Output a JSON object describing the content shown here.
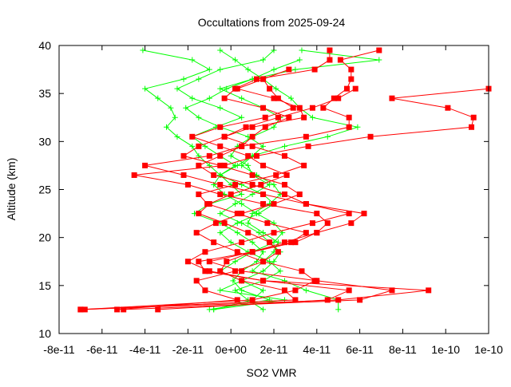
{
  "chart_data": {
    "type": "line",
    "title": "Occultations from 2025-09-24",
    "xlabel": "SO2 VMR",
    "ylabel": "Altitude (km)",
    "xlim": [
      -8e-11,
      1.2e-10
    ],
    "ylim": [
      10,
      40
    ],
    "xticks": [
      -8e-11,
      -6e-11,
      -4e-11,
      -2e-11,
      0,
      2e-11,
      4e-11,
      6e-11,
      8e-11,
      1e-10,
      1.2e-10
    ],
    "xtick_labels": [
      "-8e-11",
      "-6e-11",
      "-4e-11",
      "-2e-11",
      "0e+00",
      "2e-11",
      "4e-11",
      "6e-11",
      "8e-11",
      "1e-10",
      "1e-10"
    ],
    "yticks": [
      10,
      15,
      20,
      25,
      30,
      35,
      40
    ],
    "ytick_labels": [
      "10",
      "15",
      "20",
      "25",
      "30",
      "35",
      "40"
    ],
    "grid": false,
    "x_unit": 1e-11,
    "series": [
      {
        "name": "red-1",
        "color": "#ff0000",
        "marker": "square",
        "alt": [
          35.5,
          34.5,
          33.5,
          32.5,
          31.5,
          30.5,
          29.5,
          28.5,
          27.5,
          26.5,
          25.5,
          24.5,
          23.5,
          22.5,
          21.5,
          20.5,
          19.5,
          18.5,
          17.5,
          16.5,
          15.5,
          14.5,
          13.5,
          12.5
        ],
        "x": [
          12,
          7.5,
          10.1,
          11.3,
          11.2,
          6.5,
          3.6,
          1.2,
          -0.3,
          -4.5,
          -2,
          -0.5,
          1.5,
          4,
          4.5,
          4,
          2.5,
          1,
          -1.5,
          -1.2,
          1.5,
          9.2,
          5,
          -7
        ]
      },
      {
        "name": "red-2",
        "color": "#ff0000",
        "marker": "square",
        "alt": [
          39.5,
          38.5,
          37.5,
          36.5,
          35.5,
          34.5,
          33.5,
          32.5,
          31.5,
          30.5,
          29.5,
          28.5,
          27.5,
          26.5,
          25.5,
          24.5,
          23.5,
          22.5,
          21.5,
          20.5,
          19.5,
          18.5,
          17.5,
          16.5,
          15.5,
          14.5,
          13.5,
          12.5
        ],
        "x": [
          6.9,
          5.1,
          5.6,
          5.6,
          5.4,
          4.8,
          4.3,
          5.5,
          5.5,
          3.5,
          0.5,
          -1,
          -4,
          -2.2,
          -0.5,
          1.5,
          3.5,
          6.2,
          5.6,
          4,
          3,
          1,
          -1,
          0.5,
          4,
          7.5,
          6,
          -5
        ]
      },
      {
        "name": "red-3",
        "color": "#ff0000",
        "marker": "square",
        "alt": [
          39.5,
          38.5,
          37.5,
          36.5,
          35.5,
          34.5,
          33.5,
          32.5,
          31.5,
          30.5,
          29.5,
          28.5,
          27.5,
          26.5,
          25.5,
          24.5,
          23.5,
          22.5,
          21.5,
          20.5,
          19.5,
          18.5,
          17.5,
          16.5,
          15.5,
          14.5,
          13.5,
          12.5
        ],
        "x": [
          4.6,
          4.6,
          3.9,
          1.2,
          0.2,
          -0.3,
          1.5,
          2.7,
          1.6,
          1,
          0.5,
          -0.5,
          -1.5,
          -0.8,
          1,
          2.5,
          3.5,
          5.5,
          3.8,
          2,
          0.5,
          -1.2,
          -2,
          -1,
          1.5,
          5.5,
          4.5,
          -3.4
        ]
      },
      {
        "name": "red-4",
        "color": "#ff0000",
        "marker": "square",
        "alt": [
          37.5,
          36.5,
          35.5,
          34.5,
          33.5,
          32.5,
          31.5,
          30.5,
          29.5,
          28.5,
          27.5,
          26.5,
          25.5,
          24.5,
          23.5,
          22.5,
          21.5,
          20.5,
          19.5,
          18.5,
          17.5,
          16.5,
          15.5,
          14.5,
          13.5,
          12.5
        ],
        "x": [
          2.7,
          1.5,
          0.3,
          2,
          3.2,
          3.4,
          1,
          -0.3,
          -1.5,
          -2.2,
          -0.5,
          1,
          2.5,
          3.2,
          2,
          0.5,
          -0.7,
          -1.6,
          -0.8,
          0.3,
          1.5,
          3.3,
          3.9,
          3,
          1,
          -7
        ]
      },
      {
        "name": "red-5",
        "color": "#ff0000",
        "marker": "square",
        "alt": [
          36.5,
          35.5,
          34.5,
          33.5,
          32.5,
          31.5,
          30.5,
          29.5,
          28.5,
          27.5,
          26.5,
          25.5,
          24.5,
          23.5,
          22.5,
          21.5,
          20.5,
          19.5,
          18.5,
          17.5,
          16.5,
          15.5,
          14.5,
          13.5,
          12.5
        ],
        "x": [
          1.5,
          1.8,
          2.2,
          2.9,
          1.6,
          -0.5,
          -1.8,
          -0.5,
          0.8,
          1.5,
          2.6,
          1.4,
          0,
          -1,
          -1.5,
          -0.3,
          0.8,
          1.8,
          2.2,
          1.5,
          0.2,
          -1.6,
          -1.2,
          0.3,
          -5.3
        ]
      },
      {
        "name": "red-6",
        "color": "#ff0000",
        "marker": "square",
        "alt": [
          35.5,
          34.5,
          33.5,
          32.5,
          31.5,
          30.5,
          29.5,
          28.5,
          27.5,
          26.5,
          25.5,
          24.5,
          23.5,
          22.5,
          21.5,
          20.5,
          19.5,
          18.5,
          17.5,
          16.5,
          15.5,
          14.5,
          13.5,
          12.5
        ],
        "x": [
          5.8,
          5,
          3.8,
          2.2,
          0.7,
          -0.3,
          1,
          2.5,
          3.4,
          2.1,
          0.2,
          -1.5,
          -1.1,
          0.3,
          1.7,
          3.5,
          2.8,
          1,
          -0.2,
          -0.5,
          0.5,
          2.5,
          3,
          -6.8
        ]
      },
      {
        "name": "green-1",
        "color": "#00ff00",
        "marker": "plus",
        "alt": [
          39.5,
          38.5,
          37.5,
          36.5,
          35.5,
          34.5,
          33.5,
          32.5,
          31.5,
          30.5,
          29.5,
          28.5,
          27.5,
          26.5,
          25.5,
          24.5,
          23.5,
          22.5,
          21.5,
          20.5,
          19.5,
          18.5,
          17.5,
          16.5,
          15.5,
          14.5,
          13.5,
          12.5
        ],
        "x": [
          -4.1,
          -1.8,
          -1,
          -2.2,
          -4,
          -3.4,
          -2.8,
          -2.6,
          -3,
          -2.5,
          -1.8,
          -1.5,
          -1,
          -0.5,
          0,
          0.5,
          -1,
          -1.7,
          -0.5,
          0.3,
          1,
          1.5,
          1.2,
          0.5,
          0.1,
          0.5,
          1.8,
          -1
        ]
      },
      {
        "name": "green-2",
        "color": "#00ff00",
        "marker": "plus",
        "alt": [
          39.5,
          38.5,
          37.5,
          36.5,
          35.5,
          34.5,
          33.5,
          32.5,
          31.5,
          30.5,
          29.5,
          28.5,
          27.5,
          26.5,
          25.5,
          24.5,
          23.5,
          22.5,
          21.5,
          20.5,
          19.5,
          18.5,
          17.5,
          16.5,
          15.5,
          14.5,
          13.5,
          12.5
        ],
        "x": [
          -0.5,
          0.2,
          0.8,
          1.5,
          2.1,
          2.8,
          3.2,
          3.8,
          5.9,
          4.5,
          2.5,
          1,
          0.5,
          1.2,
          2,
          2.3,
          1.8,
          1,
          0.8,
          1.5,
          2.2,
          2,
          1.5,
          1,
          2.5,
          3.5,
          5,
          5
        ]
      },
      {
        "name": "green-3",
        "color": "#00ff00",
        "marker": "plus",
        "alt": [
          39.5,
          38.5,
          37.5,
          36.5,
          35.5,
          34.5,
          33.5,
          32.5,
          31.5,
          30.5,
          29.5,
          28.5,
          27.5,
          26.5,
          25.5,
          24.5,
          23.5,
          22.5,
          21.5,
          20.5,
          19.5,
          18.5,
          17.5,
          16.5,
          15.5,
          14.5,
          13.5,
          12.5
        ],
        "x": [
          2,
          1.5,
          -0.5,
          -1.5,
          -2.5,
          -1.8,
          -0.5,
          0.5,
          -0.7,
          -1.8,
          -1.2,
          -0.5,
          0.2,
          -0.5,
          -0.8,
          -0.3,
          0.5,
          1.2,
          2,
          2.4,
          2,
          1,
          0.2,
          -0.5,
          0.5,
          1.5,
          1,
          -0.8
        ]
      },
      {
        "name": "green-4",
        "color": "#00ff00",
        "marker": "plus",
        "alt": [
          39.5,
          38.5,
          37.5,
          36.5,
          35.5,
          34.5,
          33.5,
          32.5,
          31.5,
          30.5,
          29.5,
          28.5,
          27.5,
          26.5,
          25.5,
          24.5,
          23.5,
          22.5,
          21.5,
          20.5,
          19.5,
          18.5,
          17.5,
          16.5,
          15.5,
          14.5,
          13.5,
          12.5
        ],
        "x": [
          3.3,
          6.9,
          3,
          1,
          -0.2,
          -1,
          -2.1,
          -1.5,
          -0.5,
          0.8,
          1.5,
          1,
          0.3,
          -0.5,
          0.5,
          1.5,
          2,
          1.3,
          0.3,
          -0.5,
          0,
          0.8,
          1.8,
          2.3,
          1.5,
          0.2,
          0.8,
          1.5
        ]
      },
      {
        "name": "green-5",
        "color": "#00ff00",
        "marker": "plus",
        "alt": [
          38.5,
          37.5,
          36.5,
          35.5,
          34.5,
          33.5,
          32.5,
          31.5,
          30.5,
          29.5,
          28.5,
          27.5,
          26.5,
          25.5,
          24.5,
          23.5,
          22.5,
          21.5,
          20.5,
          19.5,
          18.5,
          17.5,
          16.5,
          15.5,
          14.5,
          13.5,
          12.5
        ],
        "x": [
          3.2,
          2,
          1,
          -0.5,
          0.5,
          1.5,
          2.3,
          2,
          1,
          0.3,
          0,
          0.8,
          1,
          1.8,
          1,
          0.2,
          -0.5,
          0.5,
          1.3,
          1.8,
          2.3,
          2,
          1.5,
          0.5,
          -0.5,
          2.5,
          -0.8
        ]
      }
    ]
  }
}
